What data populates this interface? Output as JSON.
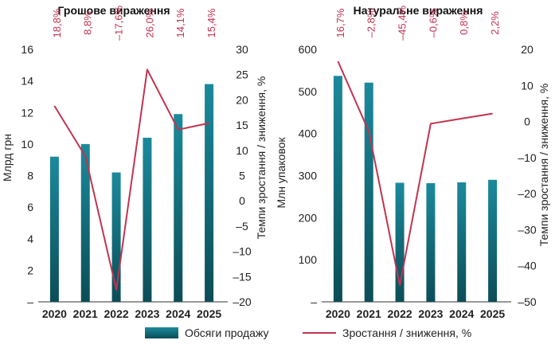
{
  "chart_data": [
    {
      "type": "bar",
      "title": "Грошове вираження",
      "categories": [
        "2020",
        "2021",
        "2022",
        "2023",
        "2024",
        "2025"
      ],
      "series": [
        {
          "name": "Обсяги продажу",
          "type": "bar",
          "axis": "left",
          "values": [
            9.2,
            10.0,
            8.2,
            10.4,
            11.9,
            13.8
          ]
        },
        {
          "name": "Зростання / зниження, %",
          "type": "line",
          "axis": "right",
          "values": [
            18.8,
            8.8,
            -17.6,
            26.0,
            14.1,
            15.4
          ]
        }
      ],
      "growth_labels": [
        "18,8%",
        "8,8%",
        "–17,6%",
        "26,0%",
        "14,1%",
        "15,4%"
      ],
      "ylabel": "Млрд грн",
      "ylabel_right": "Темпи зростання / зниження, %",
      "ylim": [
        0,
        16
      ],
      "ylim_right": [
        -20,
        30
      ],
      "yticks": [
        "–",
        "2",
        "4",
        "6",
        "8",
        "10",
        "12",
        "14",
        "16"
      ],
      "yticks_right": [
        "–20",
        "–15",
        "–10",
        "–5",
        "0",
        "5",
        "10",
        "15",
        "20",
        "25",
        "30"
      ],
      "grid": false
    },
    {
      "type": "bar",
      "title": "Натуральне вираження",
      "categories": [
        "2020",
        "2021",
        "2022",
        "2023",
        "2024",
        "2025"
      ],
      "series": [
        {
          "name": "Обсяги продажу",
          "type": "bar",
          "axis": "left",
          "values": [
            537,
            521,
            283,
            282,
            284,
            290
          ]
        },
        {
          "name": "Зростання / зниження, %",
          "type": "line",
          "axis": "right",
          "values": [
            16.7,
            -2.8,
            -45.4,
            -0.6,
            0.8,
            2.2
          ]
        }
      ],
      "growth_labels": [
        "16,7%",
        "–2,8%",
        "–45,4%",
        "–0,6%",
        "0,8%",
        "2,2%"
      ],
      "ylabel": "Млн упаковок",
      "ylabel_right": "Темпи зростання / зниження, %",
      "ylim": [
        0,
        600
      ],
      "ylim_right": [
        -50,
        20
      ],
      "yticks": [
        "–",
        "100",
        "200",
        "300",
        "400",
        "500",
        "600"
      ],
      "yticks_right": [
        "–50",
        "–40",
        "–30",
        "–20",
        "–10",
        "0",
        "10",
        "20"
      ],
      "grid": false
    }
  ],
  "legend": {
    "placement": "bottom",
    "bar_label": "Обсяги продажу",
    "line_label": "Зростання / зниження, %"
  },
  "colors": {
    "bar_top": "#1b8a9c",
    "bar_bottom": "#0b4d57",
    "line": "#c0344f",
    "growth_text": "#c0344f"
  }
}
